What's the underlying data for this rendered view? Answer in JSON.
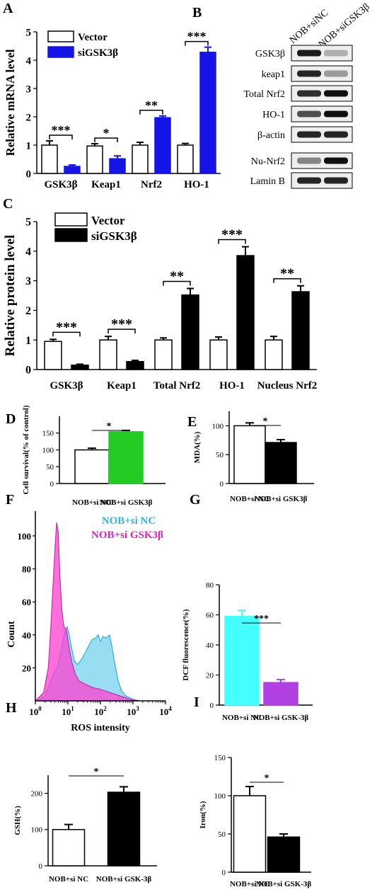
{
  "panels": {
    "A": "A",
    "B": "B",
    "C": "C",
    "D": "D",
    "E": "E",
    "F": "F",
    "G": "G",
    "H": "H",
    "I": "I"
  },
  "colors": {
    "vector_fill": "#ffffff",
    "si_blue": "#1414e6",
    "si_black": "#000000",
    "green": "#22cc22",
    "cyan": "#44ffff",
    "violet": "#b040e0",
    "flow_ncs": "#87d7f0",
    "flow_gsk": "#ff3fd0"
  },
  "western_blot": {
    "columns": [
      "NOB+siNC",
      "NOB+siGSK3β"
    ],
    "rows": [
      "GSK3β",
      "keap1",
      "Total Nrf2",
      "HO-1",
      "β-actin",
      "Nu-Nrf2",
      "Lamin B"
    ],
    "band_intensity": [
      [
        0.95,
        0.25
      ],
      [
        0.9,
        0.35
      ],
      [
        0.85,
        1.0
      ],
      [
        0.7,
        1.0
      ],
      [
        0.9,
        0.9
      ],
      [
        0.45,
        1.0
      ],
      [
        0.9,
        0.9
      ]
    ]
  },
  "chart_data": [
    {
      "id": "A",
      "type": "bar",
      "ylabel": "Relative mRNA level",
      "ylim": [
        0,
        5
      ],
      "yticks": [
        "0",
        "1",
        "2",
        "3",
        "4",
        "5"
      ],
      "categories": [
        "GSK3β",
        "Keap1",
        "Nrf2",
        "HO-1"
      ],
      "legend": [
        "Vector",
        "siGSK3β"
      ],
      "legend_position": "top-left",
      "series": [
        {
          "name": "Vector",
          "values": [
            1.0,
            0.97,
            1.0,
            1.0
          ],
          "errors": [
            0.15,
            0.08,
            0.1,
            0.06
          ]
        },
        {
          "name": "siGSK3β",
          "values": [
            0.25,
            0.52,
            1.97,
            4.28
          ],
          "errors": [
            0.05,
            0.1,
            0.06,
            0.18
          ]
        }
      ],
      "significance": [
        "***",
        "*",
        "**",
        "***"
      ]
    },
    {
      "id": "C",
      "type": "bar",
      "ylabel": "Relative protein level",
      "ylim": [
        0,
        5
      ],
      "yticks": [
        "0",
        "1",
        "2",
        "3",
        "4",
        "5"
      ],
      "categories": [
        "GSK3β",
        "Keap1",
        "Total Nrf2",
        "HO-1",
        "Nucleus Nrf2"
      ],
      "legend": [
        "Vector",
        "siGSK3β"
      ],
      "legend_position": "top-left",
      "series": [
        {
          "name": "Vector",
          "values": [
            0.95,
            1.0,
            1.0,
            1.0,
            1.0
          ],
          "errors": [
            0.07,
            0.12,
            0.07,
            0.1,
            0.12
          ]
        },
        {
          "name": "siGSK3β",
          "values": [
            0.15,
            0.27,
            2.52,
            3.85,
            2.63
          ],
          "errors": [
            0.03,
            0.04,
            0.22,
            0.3,
            0.2
          ]
        }
      ],
      "significance": [
        "***",
        "***",
        "**",
        "***",
        "**"
      ]
    },
    {
      "id": "D",
      "type": "bar",
      "ylabel": "Cell survival(% of control)",
      "ylim": [
        0,
        200
      ],
      "yticks": [
        "0",
        "50",
        "100",
        "150"
      ],
      "categories": [
        "NOB+si NC",
        "NOB+si GSK3β"
      ],
      "values": [
        100,
        154
      ],
      "errors": [
        5,
        4
      ],
      "significance": "*"
    },
    {
      "id": "E",
      "type": "bar",
      "ylabel": "MDA(%)",
      "ylim": [
        0,
        125
      ],
      "yticks": [
        "0",
        "50",
        "100"
      ],
      "categories": [
        "NOB+si NC",
        "NOB+si GSK3β"
      ],
      "values": [
        100,
        71
      ],
      "errors": [
        5,
        5
      ],
      "significance": "*"
    },
    {
      "id": "F",
      "type": "area",
      "ylabel": "Count",
      "xlabel": "ROS intensity",
      "xscale": "log",
      "xlim": [
        1,
        10000
      ],
      "ylim": [
        0,
        115
      ],
      "yticks": [
        "20",
        "40",
        "60",
        "80",
        "100"
      ],
      "legend": [
        "NOB+si NC",
        "NOB+si GSK3β"
      ],
      "series": [
        {
          "name": "NOB+si NC",
          "points": [
            [
              1.0,
              0
            ],
            [
              2.0,
              3
            ],
            [
              3.0,
              12
            ],
            [
              4.0,
              18
            ],
            [
              5.0,
              22
            ],
            [
              6.0,
              30
            ],
            [
              8.0,
              42
            ],
            [
              9.5,
              45
            ],
            [
              11.0,
              40
            ],
            [
              13.0,
              32
            ],
            [
              16.0,
              24
            ],
            [
              20.0,
              22
            ],
            [
              28.0,
              26
            ],
            [
              40.0,
              32
            ],
            [
              55.0,
              37
            ],
            [
              70.0,
              38
            ],
            [
              85.0,
              40
            ],
            [
              100.0,
              36
            ],
            [
              120.0,
              39
            ],
            [
              150.0,
              38
            ],
            [
              190.0,
              40
            ],
            [
              230.0,
              32
            ],
            [
              280.0,
              22
            ],
            [
              350.0,
              12
            ],
            [
              450.0,
              6
            ],
            [
              600.0,
              3
            ],
            [
              1000.0,
              1
            ],
            [
              1600.0,
              0
            ]
          ]
        },
        {
          "name": "NOB+si GSK3β",
          "points": [
            [
              1.0,
              0
            ],
            [
              1.8,
              5
            ],
            [
              2.5,
              20
            ],
            [
              3.0,
              45
            ],
            [
              3.5,
              70
            ],
            [
              4.0,
              92
            ],
            [
              4.5,
              108
            ],
            [
              5.0,
              103
            ],
            [
              5.6,
              78
            ],
            [
              6.5,
              55
            ],
            [
              7.5,
              45
            ],
            [
              9.0,
              43
            ],
            [
              10.5,
              34
            ],
            [
              13.0,
              24
            ],
            [
              17.0,
              16
            ],
            [
              22.0,
              12
            ],
            [
              35.0,
              10
            ],
            [
              60.0,
              8
            ],
            [
              100.0,
              7
            ],
            [
              200.0,
              5
            ],
            [
              400.0,
              3
            ],
            [
              800.0,
              1
            ],
            [
              1500.0,
              0
            ]
          ]
        }
      ]
    },
    {
      "id": "G",
      "type": "bar",
      "ylabel": "DCF fluorescence(%)",
      "ylim": [
        0,
        80
      ],
      "yticks": [
        "0",
        "20",
        "40",
        "60",
        "80"
      ],
      "categories": [
        "NOB+si NC",
        "NOB+si GSK-3β"
      ],
      "values": [
        59,
        15
      ],
      "errors": [
        4,
        2
      ],
      "significance": "***"
    },
    {
      "id": "H",
      "type": "bar",
      "ylabel": "GSH(%)",
      "ylim": [
        0,
        250
      ],
      "yticks": [
        "0",
        "100",
        "200"
      ],
      "categories": [
        "NOB+si NC",
        "NOB+si GSK-3β"
      ],
      "values": [
        100,
        203
      ],
      "errors": [
        14,
        15
      ],
      "significance": "*"
    },
    {
      "id": "I",
      "type": "bar",
      "ylabel": "Iron(%)",
      "ylim": [
        0,
        150
      ],
      "yticks": [
        "0",
        "50",
        "100",
        "150"
      ],
      "categories": [
        "NOB+si NC",
        "NOB+si GSK-3β"
      ],
      "values": [
        100,
        46
      ],
      "errors": [
        12,
        4
      ],
      "significance": "*"
    }
  ]
}
